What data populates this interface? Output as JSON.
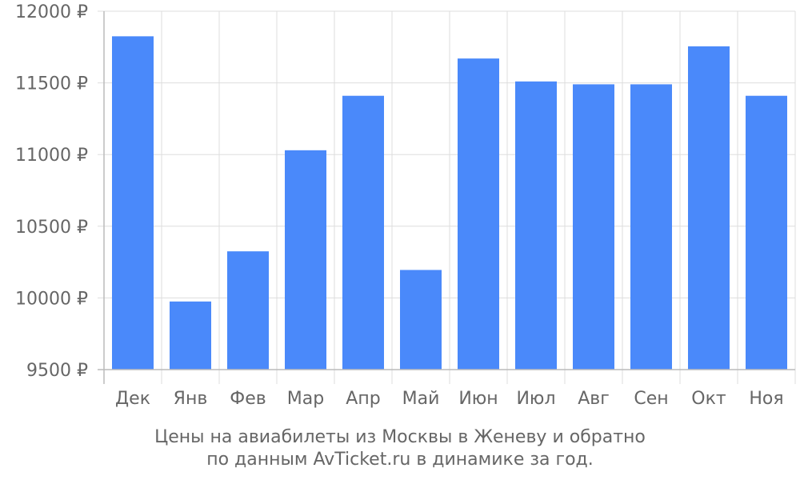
{
  "chart_data": {
    "type": "bar",
    "categories": [
      "Дек",
      "Янв",
      "Фев",
      "Мар",
      "Апр",
      "Май",
      "Июн",
      "Июл",
      "Авг",
      "Сен",
      "Окт",
      "Ноя"
    ],
    "values": [
      11825,
      9975,
      10325,
      11030,
      11410,
      10195,
      11670,
      11510,
      11490,
      11490,
      11755,
      11410
    ],
    "ylim": [
      9500,
      12000
    ],
    "yticks": [
      9500,
      10000,
      10500,
      11000,
      11500,
      12000
    ],
    "ytick_labels": [
      "9500 ₽",
      "10000 ₽",
      "10500 ₽",
      "11000 ₽",
      "11500 ₽",
      "12000 ₽"
    ],
    "grid": true,
    "bar_color": "#4a89fa",
    "caption_line1": "Цены на авиабилеты из Москвы в Женеву и обратно",
    "caption_line2": "по данным AvTicket.ru в динамике за год."
  }
}
